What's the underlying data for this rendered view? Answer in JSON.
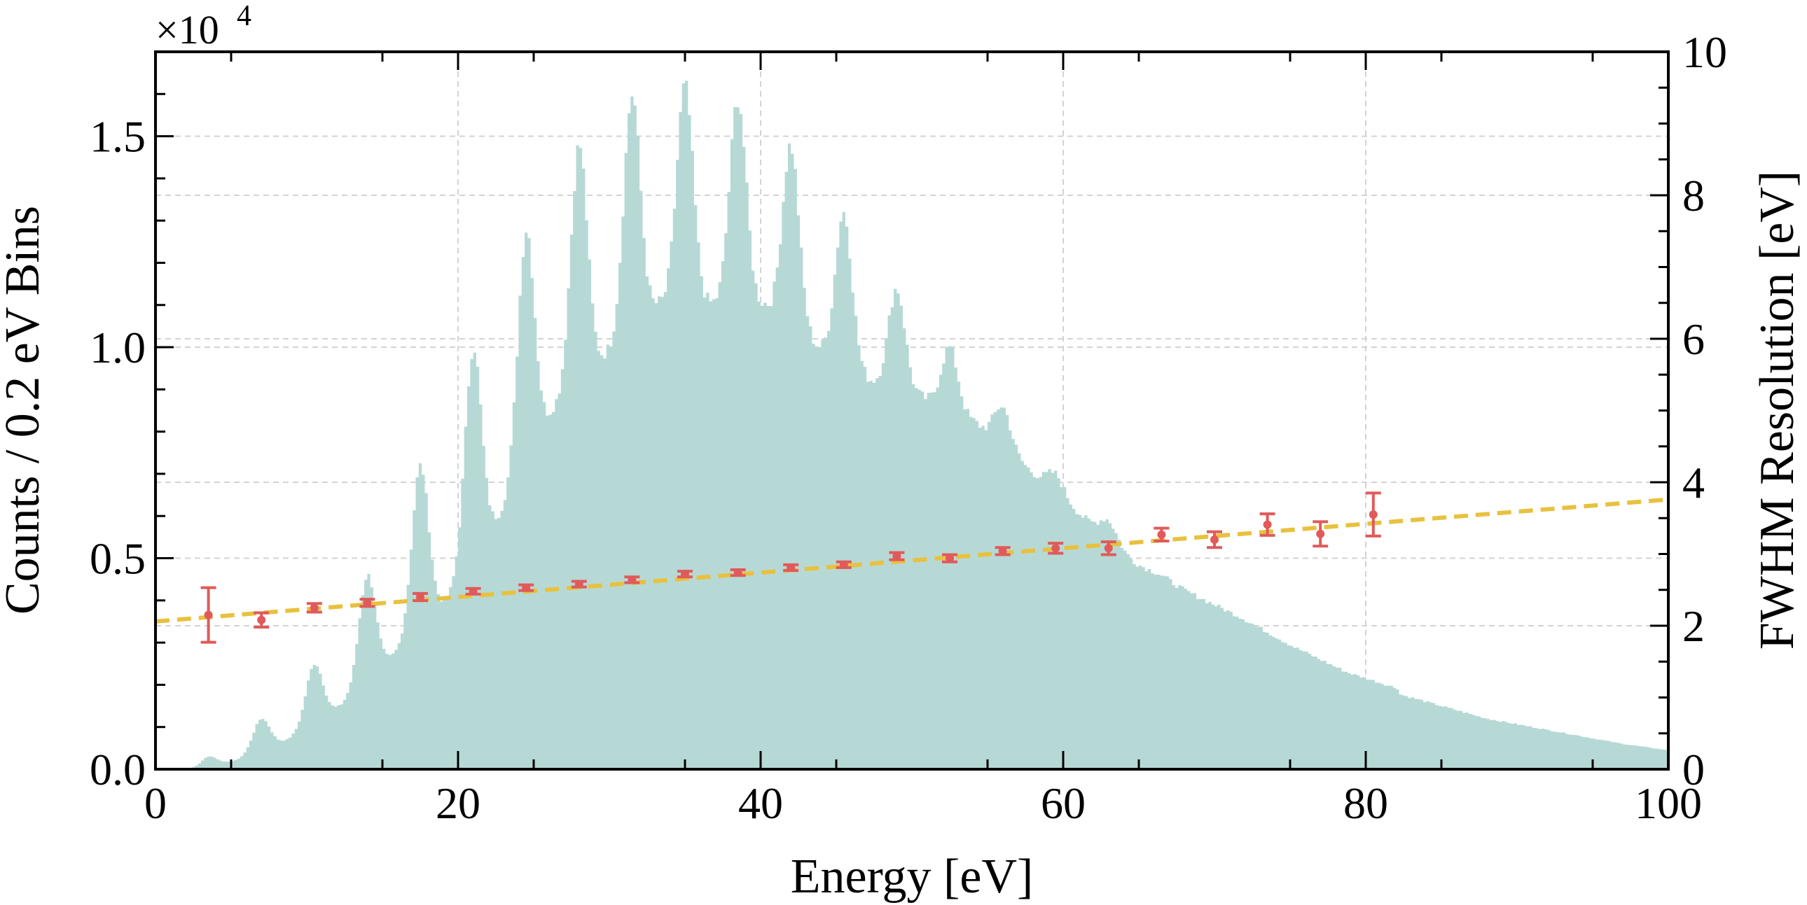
{
  "chart_data": {
    "type": "histogram-with-errorbars",
    "x_axis": {
      "label": "Energy [eV]",
      "range": [
        0,
        100
      ],
      "ticks": [
        0,
        20,
        40,
        60,
        80,
        100
      ],
      "tick_labels": [
        "0",
        "20",
        "40",
        "60",
        "80",
        "100"
      ]
    },
    "y_left_axis": {
      "label": "Counts / 0.2 eV Bins",
      "range": [
        0,
        1.7
      ],
      "multiplier_label": "×10",
      "multiplier_exponent": "4",
      "ticks": [
        0.0,
        0.5,
        1.0,
        1.5
      ],
      "tick_labels": [
        "0.0",
        "0.5",
        "1.0",
        "1.5"
      ]
    },
    "y_right_axis": {
      "label": "FWHM Resolution [eV]",
      "range": [
        0,
        10
      ],
      "ticks": [
        0,
        2,
        4,
        6,
        8,
        10
      ],
      "tick_labels": [
        "0",
        "2",
        "4",
        "6",
        "8",
        "10"
      ]
    },
    "grid": true,
    "histogram": {
      "axis": "left",
      "bin_width_eV": 0.2,
      "color": "#b7d9d6",
      "peaks_eV": [
        3.5,
        7.0,
        10.5,
        14.0,
        17.5,
        21.0,
        24.5,
        28.0,
        31.5,
        35.0,
        38.5,
        42.0,
        45.5,
        49.0,
        52.5,
        56.0,
        59.5,
        63.0,
        66.5,
        70.0,
        73.5,
        77.0,
        80.5
      ],
      "peak_heights_x1e4": [
        0.03,
        0.12,
        0.25,
        0.46,
        0.72,
        1.0,
        1.28,
        1.48,
        1.6,
        1.62,
        1.59,
        1.48,
        1.32,
        1.14,
        1.0,
        0.86,
        0.7,
        0.59,
        0.46,
        0.38,
        0.31,
        0.24,
        0.19
      ],
      "valley_heights_x1e4": [
        0.0,
        0.02,
        0.07,
        0.15,
        0.27,
        0.4,
        0.6,
        0.85,
        0.98,
        1.1,
        1.1,
        1.1,
        1.0,
        0.92,
        0.88,
        0.82,
        0.71,
        0.6,
        0.49,
        0.42,
        0.36,
        0.29,
        0.23,
        0.19
      ],
      "tail_x1e4": [
        [
          82,
          0.18
        ],
        [
          85,
          0.15
        ],
        [
          88,
          0.12
        ],
        [
          91,
          0.1
        ],
        [
          94,
          0.08
        ],
        [
          97,
          0.06
        ],
        [
          100,
          0.045
        ]
      ]
    },
    "errorbar_series": {
      "axis": "right",
      "color": "#e05a5a",
      "x": [
        3.5,
        7.0,
        10.5,
        14.0,
        17.5,
        21.0,
        24.5,
        28.0,
        31.5,
        35.0,
        38.5,
        42.0,
        45.5,
        49.0,
        52.5,
        56.0,
        59.5,
        63.0,
        66.5,
        70.0,
        73.5,
        77.0,
        80.5
      ],
      "y": [
        2.15,
        2.08,
        2.25,
        2.32,
        2.4,
        2.48,
        2.53,
        2.58,
        2.64,
        2.72,
        2.74,
        2.81,
        2.85,
        2.97,
        2.94,
        3.04,
        3.08,
        3.08,
        3.27,
        3.2,
        3.41,
        3.28,
        3.55
      ],
      "yerr": [
        0.38,
        0.1,
        0.06,
        0.05,
        0.05,
        0.04,
        0.04,
        0.04,
        0.04,
        0.04,
        0.04,
        0.04,
        0.04,
        0.05,
        0.05,
        0.05,
        0.07,
        0.09,
        0.09,
        0.11,
        0.15,
        0.17,
        0.3
      ]
    },
    "fit_line": {
      "axis": "right",
      "style": "dashed",
      "color": "#e8c13e",
      "x": [
        0,
        100
      ],
      "y": [
        2.06,
        3.76
      ]
    }
  }
}
